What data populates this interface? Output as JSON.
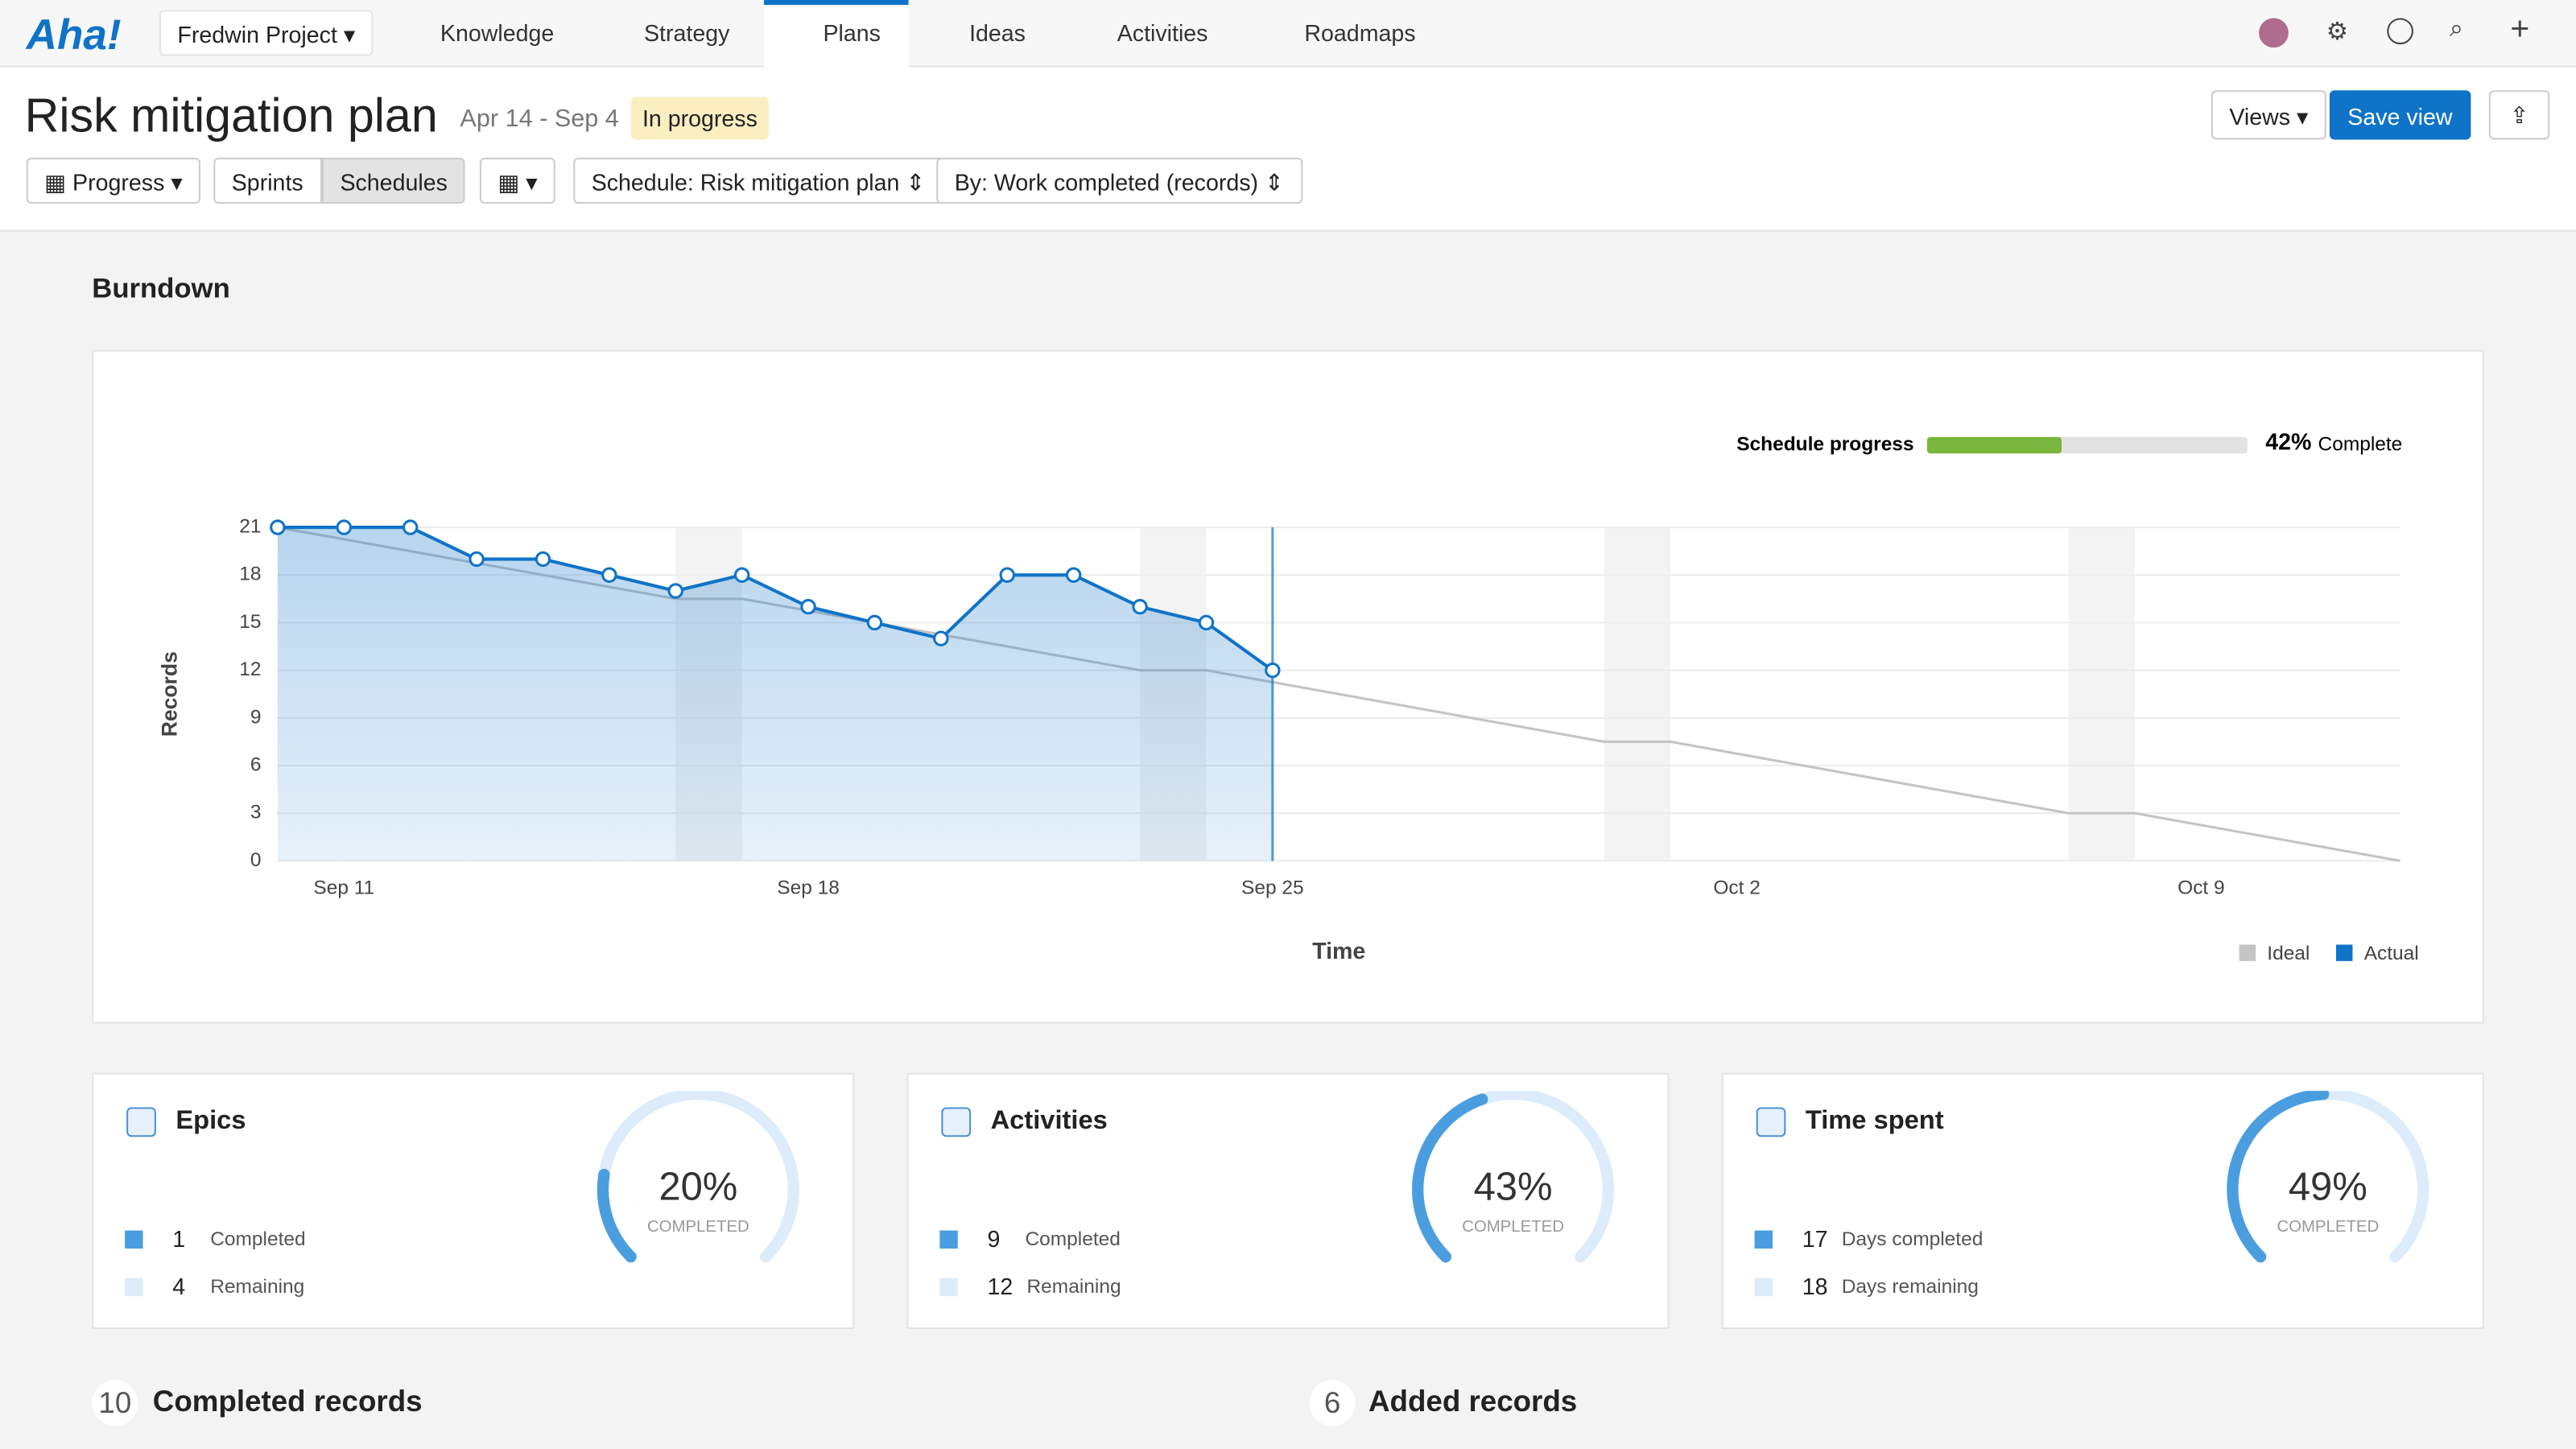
{
  "nav": {
    "logo": "Aha!",
    "project": "Fredwin Project",
    "tabs": [
      "Knowledge",
      "Strategy",
      "Plans",
      "Ideas",
      "Activities",
      "Roadmaps"
    ]
  },
  "header": {
    "title": "Risk mitigation plan",
    "dates": "Apr 14 - Sep 4",
    "status": "In progress",
    "views": "Views",
    "save": "Save view"
  },
  "toolbar": {
    "progress": "Progress",
    "sprints": "Sprints",
    "schedules": "Schedules",
    "schedule": "Schedule: Risk mitigation plan",
    "by": "By: Work completed (records)"
  },
  "chart_data": {
    "type": "line",
    "title": "Burndown",
    "x_label": "Time",
    "y_label": "Records",
    "categories": [
      null,
      "Sep 11",
      null,
      null,
      null,
      null,
      null,
      null,
      "Sep 18",
      null,
      null,
      null,
      null,
      null,
      null,
      "Sep 25",
      null,
      null,
      null,
      null,
      null,
      null,
      "Oct 2",
      null,
      null,
      null,
      null,
      null,
      null,
      "Oct 9",
      null,
      null,
      null
    ],
    "series": [
      {
        "name": "Ideal",
        "color": "#c4c4c4",
        "values": [
          21,
          20.25,
          19.5,
          18.75,
          18,
          17.25,
          16.5,
          16.5,
          15.75,
          15,
          14.25,
          13.5,
          12.75,
          12,
          12,
          11.25,
          10.5,
          9.75,
          9,
          8.25,
          7.5,
          7.5,
          6.75,
          6,
          5.25,
          4.5,
          3.75,
          3,
          3,
          2.25,
          1.5,
          0.75,
          0
        ]
      },
      {
        "name": "Actual",
        "color": "#0f73c8",
        "values": [
          21,
          21,
          21,
          19,
          19,
          18,
          17,
          18,
          16,
          15,
          14,
          18,
          18,
          16,
          15,
          12,
          null,
          null,
          null,
          null,
          null,
          null,
          null,
          null,
          null,
          null,
          null,
          null,
          null,
          null,
          null,
          null,
          null
        ]
      }
    ],
    "ylim": [
      0,
      21
    ],
    "yticks": [
      0,
      3,
      6,
      9,
      12,
      15,
      18,
      21
    ],
    "grid": true,
    "legend": "bottom-right",
    "schedule_progress": {
      "label": "Schedule progress",
      "value": 42,
      "value_label": "42%",
      "suffix": "Complete"
    }
  },
  "cards": [
    {
      "title": "Epics",
      "percent": 20,
      "percent_label": "20%",
      "caption": "COMPLETED",
      "completed": 1,
      "completed_label": "Completed",
      "remaining": 4,
      "remaining_label": "Remaining"
    },
    {
      "title": "Activities",
      "percent": 43,
      "percent_label": "43%",
      "caption": "COMPLETED",
      "completed": 9,
      "completed_label": "Completed",
      "remaining": 12,
      "remaining_label": "Remaining"
    },
    {
      "title": "Time spent",
      "percent": 49,
      "percent_label": "49%",
      "caption": "COMPLETED",
      "completed": 17,
      "completed_label": "Days completed",
      "remaining": 18,
      "remaining_label": "Days remaining"
    }
  ],
  "footer": [
    {
      "count": 10,
      "label": "Completed records"
    },
    {
      "count": 6,
      "label": "Added records"
    }
  ]
}
